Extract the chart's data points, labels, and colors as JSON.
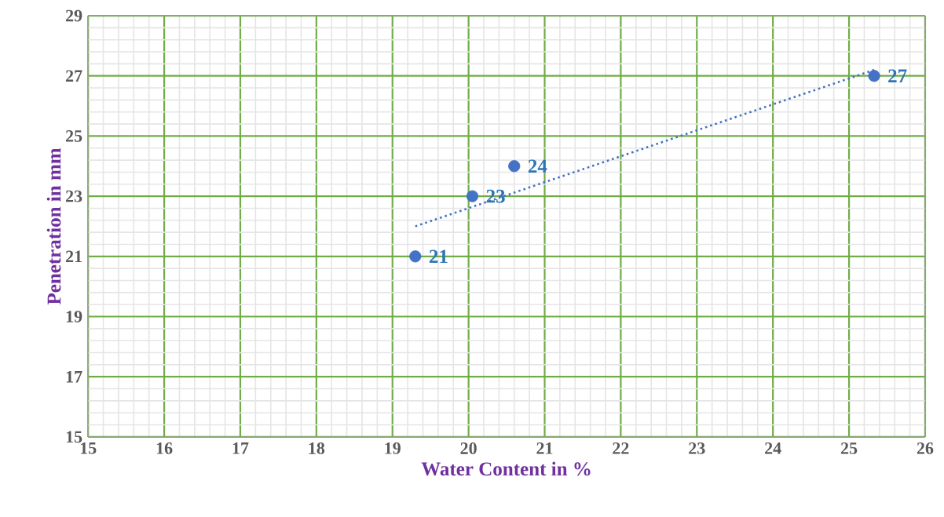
{
  "chart_data": {
    "type": "scatter",
    "xlabel": "Water Content in %",
    "ylabel": "Penetration in mm",
    "xlim": [
      15,
      26
    ],
    "ylim": [
      15,
      29
    ],
    "xticks": [
      15,
      16,
      17,
      18,
      19,
      20,
      21,
      22,
      23,
      24,
      25,
      26
    ],
    "yticks": [
      15,
      17,
      19,
      21,
      23,
      25,
      27,
      29
    ],
    "grid": true,
    "series": [
      {
        "color": "#4472c4",
        "marker": "circle",
        "x": [
          19.3,
          20.05,
          20.6,
          25.33
        ],
        "values": [
          21,
          23,
          24,
          27
        ],
        "value_labels": [
          "21",
          "23",
          "24",
          "27"
        ]
      },
      {
        "type": "line",
        "color": "#4472c4",
        "marker": "none",
        "line_style": "dotted",
        "x": [
          19.3,
          25.33
        ],
        "values": [
          22.0,
          27.2
        ]
      }
    ]
  }
}
